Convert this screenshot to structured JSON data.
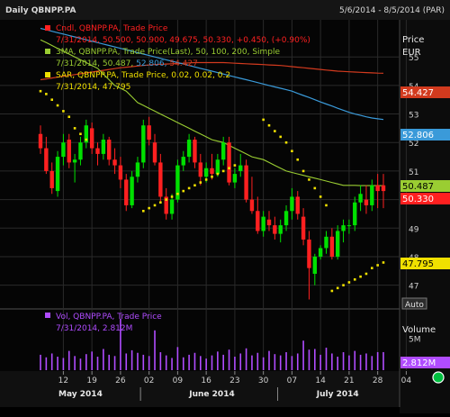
{
  "window": {
    "title": "Daily QBNPP.PA",
    "date_range": "5/6/2014 - 8/5/2014 (PAR)"
  },
  "axis": {
    "price_title": "Price",
    "price_unit": "EUR",
    "price_ticks": [
      "55",
      "54",
      "53",
      "52",
      "51",
      "50",
      "49",
      "48",
      "47"
    ],
    "auto_button": "Auto",
    "volume_title": "Volume",
    "volume_ticks": [
      "5M"
    ],
    "day_ticks": [
      "12",
      "19",
      "26",
      "02",
      "09",
      "16",
      "23",
      "30",
      "07",
      "14",
      "21",
      "28",
      "04"
    ],
    "month_labels": [
      "May 2014",
      "June 2014",
      "July 2014"
    ]
  },
  "legend": {
    "candle_title": "Cndl, QBNPP.PA, Trade Price",
    "candle_values": "7/31/2014, 50.500, 50.900, 49.675, 50.330, +0.450, (+0.90%)",
    "ma_title": "3MA, QBNPP.PA, Trade Price(Last),  50, 100, 200, Simple",
    "ma_values_date": "7/31/2014, 50.487,",
    "ma_values_mid": "52.806,",
    "ma_values_long": "54.427",
    "sar_title": "SAR, QBNPP.PA, Trade Price,  0.02, 0.02, 0.2",
    "sar_values": "7/31/2014, 47.795",
    "vol_title": "Vol, QBNPP.PA, Trade Price",
    "vol_values": "7/31/2014, 2.812M"
  },
  "badges": {
    "ma200": "54.427",
    "ma100": "52.806",
    "ma50": "50.487",
    "close": "50.330",
    "sar": "47.795",
    "volume": "2.812M"
  },
  "colors": {
    "up": "#00e000",
    "down": "#ff2020",
    "ma50": "#9acd32",
    "ma100": "#3a9ad9",
    "ma200": "#d23a1e",
    "sar": "#f0e000",
    "volume": "#b04cff",
    "panel": "#1c1c1c",
    "grid": "#2a2a2a",
    "status": "#00c040"
  },
  "chart_data": {
    "type": "candlestick",
    "x_start": "2014-05-06",
    "x_end": "2014-08-05",
    "ylim": [
      46.2,
      56.3
    ],
    "series": [
      {
        "name": "Cndl",
        "ohlc": [
          [
            52.3,
            52.6,
            51.6,
            51.8
          ],
          [
            51.8,
            52.2,
            50.9,
            51.0
          ],
          [
            51.0,
            51.3,
            50.2,
            50.4
          ],
          [
            50.3,
            51.7,
            50.1,
            51.5
          ],
          [
            51.5,
            52.3,
            51.2,
            52.0
          ],
          [
            52.1,
            52.3,
            51.1,
            51.3
          ],
          [
            51.3,
            51.6,
            50.6,
            51.4
          ],
          [
            51.4,
            52.2,
            51.2,
            52.0
          ],
          [
            52.0,
            52.8,
            51.8,
            52.6
          ],
          [
            52.5,
            52.7,
            51.6,
            51.8
          ],
          [
            51.8,
            52.0,
            51.2,
            51.6
          ],
          [
            51.6,
            52.3,
            51.4,
            52.1
          ],
          [
            52.1,
            52.2,
            51.2,
            51.4
          ],
          [
            51.4,
            51.8,
            50.9,
            51.2
          ],
          [
            51.2,
            51.5,
            50.4,
            50.7
          ],
          [
            50.7,
            50.9,
            49.6,
            49.8
          ],
          [
            49.8,
            51.0,
            49.7,
            50.8
          ],
          [
            50.8,
            51.5,
            50.6,
            51.3
          ],
          [
            51.3,
            52.8,
            51.1,
            52.6
          ],
          [
            52.6,
            52.9,
            51.9,
            52.1
          ],
          [
            52.0,
            52.3,
            51.2,
            51.3
          ],
          [
            51.3,
            51.6,
            49.9,
            50.1
          ],
          [
            50.1,
            50.4,
            49.3,
            49.5
          ],
          [
            49.5,
            50.2,
            49.3,
            50.0
          ],
          [
            50.0,
            51.4,
            49.9,
            51.2
          ],
          [
            51.2,
            51.7,
            51.0,
            51.5
          ],
          [
            51.5,
            52.3,
            51.3,
            52.1
          ],
          [
            52.1,
            52.2,
            51.1,
            51.3
          ],
          [
            51.3,
            51.6,
            50.5,
            50.8
          ],
          [
            50.8,
            51.3,
            50.6,
            51.1
          ],
          [
            51.1,
            51.6,
            50.7,
            50.9
          ],
          [
            50.9,
            51.6,
            50.8,
            51.4
          ],
          [
            51.4,
            52.2,
            51.2,
            52.0
          ],
          [
            52.0,
            52.2,
            50.5,
            50.6
          ],
          [
            50.6,
            51.1,
            50.4,
            50.9
          ],
          [
            51.0,
            51.6,
            50.8,
            51.2
          ],
          [
            51.2,
            51.4,
            49.9,
            50.0
          ],
          [
            50.0,
            50.8,
            49.5,
            49.6
          ],
          [
            49.6,
            50.1,
            48.8,
            48.9
          ],
          [
            48.9,
            49.6,
            48.7,
            49.4
          ],
          [
            49.3,
            49.6,
            48.9,
            49.1
          ],
          [
            49.1,
            49.4,
            48.6,
            48.8
          ],
          [
            48.8,
            49.3,
            48.5,
            49.1
          ],
          [
            49.1,
            49.8,
            48.9,
            49.6
          ],
          [
            49.6,
            50.4,
            49.3,
            50.1
          ],
          [
            50.1,
            50.3,
            49.3,
            49.5
          ],
          [
            49.4,
            49.7,
            48.4,
            48.6
          ],
          [
            48.6,
            48.9,
            46.5,
            47.6
          ],
          [
            47.4,
            48.1,
            47.0,
            48.0
          ],
          [
            48.0,
            48.4,
            47.9,
            48.3
          ],
          [
            48.3,
            48.9,
            48.1,
            48.7
          ],
          [
            48.7,
            49.0,
            47.9,
            48.0
          ],
          [
            48.0,
            49.1,
            47.9,
            48.9
          ],
          [
            48.9,
            49.3,
            48.5,
            49.1
          ],
          [
            49.1,
            49.3,
            48.8,
            49.1
          ],
          [
            49.1,
            50.1,
            48.9,
            49.9
          ],
          [
            49.9,
            50.5,
            49.6,
            50.2
          ],
          [
            50.0,
            50.5,
            49.5,
            49.8
          ],
          [
            49.8,
            50.7,
            49.6,
            50.5
          ],
          [
            50.5,
            50.9,
            49.7,
            50.3
          ],
          [
            50.5,
            50.9,
            49.7,
            50.3
          ]
        ]
      },
      {
        "name": "MA50",
        "values": [
          55.6,
          55.5,
          55.4,
          55.3,
          55.2,
          55.1,
          55.0,
          54.9,
          54.8,
          54.7,
          54.6,
          54.4,
          54.2,
          54.0,
          53.9,
          53.8,
          53.6,
          53.4,
          53.3,
          53.2,
          53.1,
          53.0,
          52.9,
          52.8,
          52.7,
          52.6,
          52.5,
          52.4,
          52.3,
          52.2,
          52.1,
          52.05,
          52.0,
          51.9,
          51.8,
          51.7,
          51.6,
          51.5,
          51.45,
          51.4,
          51.3,
          51.2,
          51.1,
          51.0,
          50.95,
          50.9,
          50.85,
          50.8,
          50.75,
          50.7,
          50.65,
          50.6,
          50.55,
          50.5,
          50.5,
          50.5,
          50.49,
          50.49,
          50.49,
          50.49,
          50.487
        ]
      },
      {
        "name": "MA100",
        "values": [
          56.0,
          55.95,
          55.9,
          55.85,
          55.8,
          55.75,
          55.7,
          55.65,
          55.6,
          55.55,
          55.5,
          55.45,
          55.4,
          55.35,
          55.3,
          55.25,
          55.2,
          55.15,
          55.1,
          55.05,
          55.0,
          54.95,
          54.9,
          54.85,
          54.8,
          54.75,
          54.7,
          54.65,
          54.6,
          54.55,
          54.5,
          54.45,
          54.4,
          54.35,
          54.3,
          54.25,
          54.2,
          54.15,
          54.1,
          54.05,
          54.0,
          53.95,
          53.9,
          53.85,
          53.8,
          53.72,
          53.65,
          53.58,
          53.5,
          53.42,
          53.35,
          53.28,
          53.2,
          53.13,
          53.06,
          53.0,
          52.95,
          52.9,
          52.86,
          52.83,
          52.806
        ]
      },
      {
        "name": "MA200",
        "values": [
          54.2,
          54.23,
          54.26,
          54.29,
          54.32,
          54.35,
          54.38,
          54.41,
          54.44,
          54.47,
          54.5,
          54.53,
          54.56,
          54.59,
          54.62,
          54.64,
          54.66,
          54.68,
          54.7,
          54.72,
          54.73,
          54.74,
          54.75,
          54.76,
          54.77,
          54.78,
          54.79,
          54.8,
          54.8,
          54.8,
          54.8,
          54.8,
          54.8,
          54.79,
          54.78,
          54.77,
          54.76,
          54.75,
          54.74,
          54.73,
          54.72,
          54.71,
          54.7,
          54.68,
          54.66,
          54.64,
          54.62,
          54.6,
          54.58,
          54.56,
          54.54,
          54.52,
          54.5,
          54.49,
          54.48,
          54.47,
          54.46,
          54.45,
          54.44,
          54.43,
          54.427
        ]
      },
      {
        "name": "SAR",
        "values": [
          53.8,
          53.7,
          53.5,
          53.3,
          53.1,
          52.9,
          52.5,
          52.3,
          52.1,
          null,
          null,
          null,
          null,
          null,
          null,
          null,
          null,
          null,
          49.6,
          49.7,
          49.8,
          49.9,
          50.0,
          50.1,
          50.2,
          50.3,
          50.4,
          50.5,
          50.6,
          50.7,
          50.8,
          50.9,
          51.0,
          51.1,
          51.2,
          null,
          null,
          null,
          null,
          52.8,
          52.6,
          52.4,
          52.2,
          52.0,
          51.7,
          51.4,
          51.0,
          50.7,
          50.4,
          50.1,
          49.8,
          46.8,
          46.9,
          47.0,
          47.1,
          47.2,
          47.3,
          47.4,
          47.6,
          47.7,
          47.795
        ]
      },
      {
        "name": "Vol",
        "values": [
          2.4,
          2.0,
          2.6,
          2.1,
          1.9,
          3.0,
          2.2,
          1.8,
          2.5,
          2.9,
          2.1,
          3.3,
          2.4,
          2.2,
          8.0,
          2.6,
          3.1,
          2.7,
          2.4,
          2.2,
          6.2,
          2.8,
          2.3,
          1.9,
          3.6,
          2.0,
          2.4,
          2.7,
          2.2,
          1.8,
          2.3,
          2.9,
          2.4,
          3.2,
          2.1,
          2.6,
          3.4,
          2.3,
          2.7,
          2.0,
          3.0,
          2.5,
          2.3,
          2.8,
          2.2,
          2.6,
          4.6,
          3.2,
          3.3,
          2.4,
          3.5,
          2.6,
          2.1,
          2.8,
          2.3,
          3.0,
          2.4,
          2.6,
          2.2,
          2.812,
          2.812
        ]
      }
    ],
    "volume_ylim": [
      0,
      9.4
    ]
  }
}
